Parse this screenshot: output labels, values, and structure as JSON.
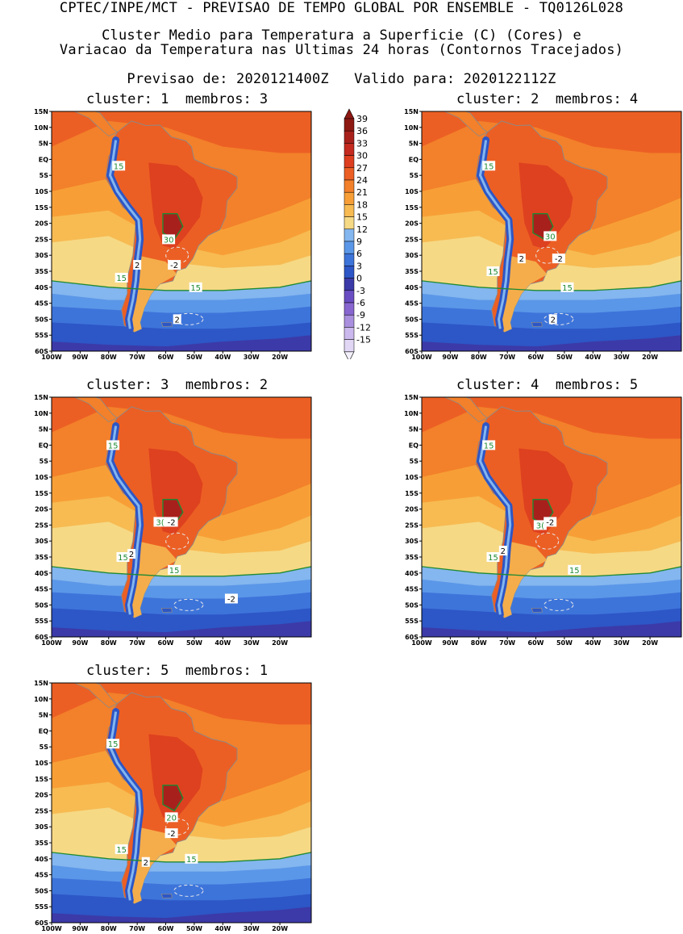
{
  "header": {
    "line1": "CPTEC/INPE/MCT - PREVISAO DE TEMPO GLOBAL POR ENSEMBLE - TQ0126L028",
    "line2": "Cluster Medio para Temperatura a Superficie (C) (Cores) e",
    "line3": "Variacao da Temperatura nas Ultimas 24 horas (Contornos Tracejados)",
    "line4": "Previsao de: 2020121400Z   Valido para: 2020122112Z"
  },
  "colors": {
    "scale": [
      "#e1d7f5",
      "#cbb8ec",
      "#a98fde",
      "#8866d0",
      "#6a4dc2",
      "#3c3aa8",
      "#2d56c6",
      "#3d74da",
      "#5b97e8",
      "#84b6ef",
      "#f6d985",
      "#f7bb52",
      "#f79f36",
      "#f3802a",
      "#ec5f24",
      "#dd3e1f",
      "#c42a1f",
      "#a8201c",
      "#8e1812"
    ],
    "ocean_levels": [
      "#f3802a",
      "#f79f36",
      "#f7bb52",
      "#f6d985",
      "#84b6ef",
      "#5b97e8",
      "#3d74da",
      "#2d56c6",
      "#3c3aa8"
    ],
    "contour_15": "#1f8a32",
    "contour_30": "#1f8a32",
    "coast": "#8a8a8a"
  },
  "chart_data": [
    {
      "type": "heatmap",
      "title": "cluster: 1  membros: 3",
      "x_ticks": [
        "100W",
        "90W",
        "80W",
        "70W",
        "60W",
        "50W",
        "40W",
        "30W",
        "20W"
      ],
      "y_ticks": [
        "15N",
        "10N",
        "5N",
        "EQ",
        "5S",
        "10S",
        "15S",
        "20S",
        "25S",
        "30S",
        "35S",
        "40S",
        "45S",
        "50S",
        "55S",
        "60S"
      ],
      "xlim": [
        -100,
        -9
      ],
      "ylim": [
        -60,
        15
      ],
      "colorbar": {
        "levels": [
          -15,
          -12,
          -9,
          -6,
          -3,
          0,
          3,
          6,
          9,
          12,
          15,
          18,
          21,
          24,
          27,
          30,
          33,
          36,
          39
        ]
      },
      "contour_labels": [
        {
          "text": "15",
          "x": -76.5,
          "y": -2
        },
        {
          "text": "15",
          "x": -75.5,
          "y": -37
        },
        {
          "text": "15",
          "x": -49.5,
          "y": -40
        },
        {
          "text": "30",
          "x": -59,
          "y": -25
        },
        {
          "text": "2",
          "x": -70,
          "y": -33
        },
        {
          "text": "-2",
          "x": -57,
          "y": -33
        },
        {
          "text": "2",
          "x": -56,
          "y": -50
        }
      ]
    },
    {
      "type": "heatmap",
      "title": "cluster: 2  membros: 4",
      "x_ticks": [
        "100W",
        "90W",
        "80W",
        "70W",
        "60W",
        "50W",
        "40W",
        "30W",
        "20W"
      ],
      "y_ticks": [
        "15N",
        "10N",
        "5N",
        "EQ",
        "5S",
        "10S",
        "15S",
        "20S",
        "25S",
        "30S",
        "35S",
        "40S",
        "45S",
        "50S",
        "55S",
        "60S"
      ],
      "xlim": [
        -100,
        -9
      ],
      "ylim": [
        -60,
        15
      ],
      "contour_labels": [
        {
          "text": "15",
          "x": -76.5,
          "y": -2
        },
        {
          "text": "15",
          "x": -75,
          "y": -35
        },
        {
          "text": "15",
          "x": -49,
          "y": -40
        },
        {
          "text": "30",
          "x": -55,
          "y": -24
        },
        {
          "text": "2",
          "x": -65,
          "y": -31
        },
        {
          "text": "-2",
          "x": -52,
          "y": -31
        },
        {
          "text": "2",
          "x": -54,
          "y": -50
        }
      ]
    },
    {
      "type": "heatmap",
      "title": "cluster: 3  membros: 2",
      "x_ticks": [
        "100W",
        "90W",
        "80W",
        "70W",
        "60W",
        "50W",
        "40W",
        "30W",
        "20W"
      ],
      "y_ticks": [
        "15N",
        "10N",
        "5N",
        "EQ",
        "5S",
        "10S",
        "15S",
        "20S",
        "25S",
        "30S",
        "35S",
        "40S",
        "45S",
        "50S",
        "55S",
        "60S"
      ],
      "xlim": [
        -100,
        -9
      ],
      "ylim": [
        -60,
        15
      ],
      "contour_labels": [
        {
          "text": "15",
          "x": -78.5,
          "y": 0
        },
        {
          "text": "15",
          "x": -75,
          "y": -35
        },
        {
          "text": "15",
          "x": -57,
          "y": -39
        },
        {
          "text": "3(",
          "x": -62,
          "y": -24
        },
        {
          "text": "-2",
          "x": -58,
          "y": -24
        },
        {
          "text": "2",
          "x": -72,
          "y": -34
        },
        {
          "text": "-2",
          "x": -37,
          "y": -48
        }
      ]
    },
    {
      "type": "heatmap",
      "title": "cluster: 4  membros: 5",
      "x_ticks": [
        "100W",
        "90W",
        "80W",
        "70W",
        "60W",
        "50W",
        "40W",
        "30W",
        "20W"
      ],
      "y_ticks": [
        "15N",
        "10N",
        "5N",
        "EQ",
        "5S",
        "10S",
        "15S",
        "20S",
        "25S",
        "30S",
        "35S",
        "40S",
        "45S",
        "50S",
        "55S",
        "60S"
      ],
      "xlim": [
        -100,
        -9
      ],
      "ylim": [
        -60,
        15
      ],
      "contour_labels": [
        {
          "text": "15",
          "x": -76.5,
          "y": 0
        },
        {
          "text": "15",
          "x": -75,
          "y": -35
        },
        {
          "text": "15",
          "x": -46.5,
          "y": -39
        },
        {
          "text": "3(",
          "x": -58.5,
          "y": -25
        },
        {
          "text": "-2",
          "x": -55,
          "y": -24
        },
        {
          "text": "2",
          "x": -71.5,
          "y": -33
        }
      ]
    },
    {
      "type": "heatmap",
      "title": "cluster: 5  membros: 1",
      "x_ticks": [
        "100W",
        "90W",
        "80W",
        "70W",
        "60W",
        "50W",
        "40W",
        "30W",
        "20W"
      ],
      "y_ticks": [
        "15N",
        "10N",
        "5N",
        "EQ",
        "5S",
        "10S",
        "15S",
        "20S",
        "25S",
        "30S",
        "35S",
        "40S",
        "45S",
        "50S",
        "55S",
        "60S"
      ],
      "xlim": [
        -100,
        -9
      ],
      "ylim": [
        -60,
        15
      ],
      "contour_labels": [
        {
          "text": "15",
          "x": -78.5,
          "y": -4
        },
        {
          "text": "15",
          "x": -75.5,
          "y": -37
        },
        {
          "text": "15",
          "x": -51,
          "y": -40
        },
        {
          "text": "20",
          "x": -58,
          "y": -27
        },
        {
          "text": "2",
          "x": -67,
          "y": -41
        },
        {
          "text": "-2",
          "x": -58,
          "y": -32
        }
      ]
    }
  ]
}
